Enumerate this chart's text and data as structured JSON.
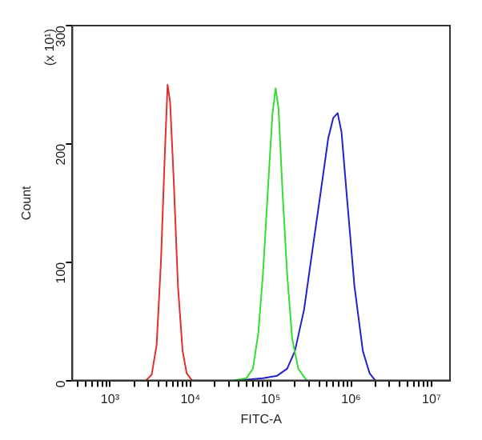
{
  "chart_data": {
    "type": "line",
    "xlabel": "FITC-A",
    "ylabel": "Count",
    "annotations": [
      "(x 10¹)"
    ],
    "log": "x",
    "grid": false,
    "marker": "none",
    "line_style": "solid",
    "xlim": [
      340,
      17000000
    ],
    "ylim": [
      0,
      300
    ],
    "yticks": [
      0,
      100,
      200,
      300
    ],
    "xticks": [
      {
        "value": 400,
        "label": null
      },
      {
        "value": 500,
        "label": null
      },
      {
        "value": 600,
        "label": null
      },
      {
        "value": 700,
        "label": null
      },
      {
        "value": 800,
        "label": null
      },
      {
        "value": 900,
        "label": null
      },
      {
        "value": 1000,
        "label": "10³"
      },
      {
        "value": 2000,
        "label": null
      },
      {
        "value": 3000,
        "label": null
      },
      {
        "value": 4000,
        "label": null
      },
      {
        "value": 5000,
        "label": null
      },
      {
        "value": 6000,
        "label": null
      },
      {
        "value": 7000,
        "label": null
      },
      {
        "value": 8000,
        "label": null
      },
      {
        "value": 9000,
        "label": null
      },
      {
        "value": 10000,
        "label": "10⁴"
      },
      {
        "value": 20000,
        "label": null
      },
      {
        "value": 30000,
        "label": null
      },
      {
        "value": 40000,
        "label": null
      },
      {
        "value": 50000,
        "label": null
      },
      {
        "value": 60000,
        "label": null
      },
      {
        "value": 70000,
        "label": null
      },
      {
        "value": 80000,
        "label": null
      },
      {
        "value": 90000,
        "label": null
      },
      {
        "value": 100000,
        "label": "10⁵"
      },
      {
        "value": 200000,
        "label": null
      },
      {
        "value": 300000,
        "label": null
      },
      {
        "value": 400000,
        "label": null
      },
      {
        "value": 500000,
        "label": null
      },
      {
        "value": 600000,
        "label": null
      },
      {
        "value": 700000,
        "label": null
      },
      {
        "value": 800000,
        "label": null
      },
      {
        "value": 900000,
        "label": null
      },
      {
        "value": 1000000,
        "label": "10⁶"
      },
      {
        "value": 2000000,
        "label": null
      },
      {
        "value": 3000000,
        "label": null
      },
      {
        "value": 4000000,
        "label": null
      },
      {
        "value": 5000000,
        "label": null
      },
      {
        "value": 6000000,
        "label": null
      },
      {
        "value": 7000000,
        "label": null
      },
      {
        "value": 8000000,
        "label": null
      },
      {
        "value": 9000000,
        "label": null
      },
      {
        "value": 10000000,
        "label": "10⁷"
      }
    ],
    "series": [
      {
        "color": "#e03030",
        "x": [
          2800,
          3300,
          3800,
          4300,
          4800,
          5200,
          5600,
          6200,
          7000,
          8000,
          9000,
          10500
        ],
        "values": [
          0,
          5,
          30,
          100,
          190,
          250,
          235,
          170,
          80,
          25,
          6,
          0
        ]
      },
      {
        "color": "#33dd33",
        "x": [
          35000,
          50000,
          60000,
          70000,
          80000,
          92000,
          105000,
          115000,
          125000,
          140000,
          160000,
          185000,
          220000,
          280000
        ],
        "values": [
          0,
          2,
          10,
          40,
          90,
          160,
          225,
          247,
          230,
          160,
          90,
          35,
          10,
          0
        ]
      },
      {
        "color": "#2222cc",
        "x": [
          40000,
          80000,
          120000,
          160000,
          200000,
          260000,
          330000,
          420000,
          520000,
          600000,
          680000,
          760000,
          900000,
          1100000,
          1400000,
          1700000,
          2000000
        ],
        "values": [
          0,
          2,
          4,
          10,
          25,
          60,
          110,
          160,
          205,
          222,
          226,
          210,
          150,
          80,
          25,
          6,
          0
        ]
      }
    ]
  }
}
